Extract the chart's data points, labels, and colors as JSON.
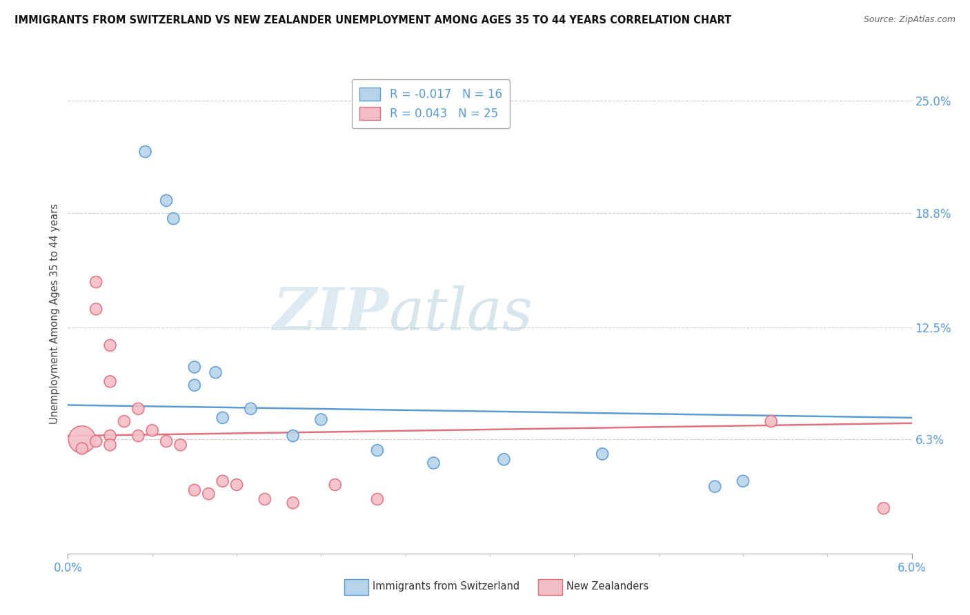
{
  "title": "IMMIGRANTS FROM SWITZERLAND VS NEW ZEALANDER UNEMPLOYMENT AMONG AGES 35 TO 44 YEARS CORRELATION CHART",
  "source": "Source: ZipAtlas.com",
  "ylabel": "Unemployment Among Ages 35 to 44 years",
  "xlim": [
    0.0,
    0.06
  ],
  "ylim": [
    0.0,
    0.265
  ],
  "yticks": [
    0.063,
    0.125,
    0.188,
    0.25
  ],
  "ytick_labels": [
    "6.3%",
    "12.5%",
    "18.8%",
    "25.0%"
  ],
  "xticks": [
    0.0,
    0.06
  ],
  "xtick_labels": [
    "0.0%",
    "6.0%"
  ],
  "blue_r": "-0.017",
  "blue_n": "16",
  "pink_r": "0.043",
  "pink_n": "25",
  "blue_color": "#b8d4ea",
  "blue_edge_color": "#5b9bd5",
  "pink_color": "#f4bec8",
  "pink_edge_color": "#e07080",
  "watermark_zip": "ZIP",
  "watermark_atlas": "atlas",
  "blue_scatter_x": [
    0.0055,
    0.007,
    0.0075,
    0.009,
    0.009,
    0.0105,
    0.011,
    0.013,
    0.016,
    0.018,
    0.022,
    0.026,
    0.031,
    0.038,
    0.046,
    0.048
  ],
  "blue_scatter_y": [
    0.222,
    0.195,
    0.185,
    0.103,
    0.093,
    0.1,
    0.075,
    0.08,
    0.065,
    0.074,
    0.057,
    0.05,
    0.052,
    0.055,
    0.037,
    0.04
  ],
  "blue_scatter_s": [
    150,
    150,
    150,
    150,
    150,
    150,
    150,
    150,
    150,
    150,
    150,
    150,
    150,
    150,
    150,
    150
  ],
  "pink_scatter_x": [
    0.001,
    0.001,
    0.002,
    0.002,
    0.002,
    0.003,
    0.003,
    0.003,
    0.003,
    0.004,
    0.005,
    0.005,
    0.006,
    0.007,
    0.008,
    0.009,
    0.01,
    0.011,
    0.012,
    0.014,
    0.016,
    0.019,
    0.022,
    0.05,
    0.058
  ],
  "pink_scatter_y": [
    0.063,
    0.058,
    0.15,
    0.135,
    0.062,
    0.115,
    0.095,
    0.065,
    0.06,
    0.073,
    0.08,
    0.065,
    0.068,
    0.062,
    0.06,
    0.035,
    0.033,
    0.04,
    0.038,
    0.03,
    0.028,
    0.038,
    0.03,
    0.073,
    0.025
  ],
  "pink_scatter_s": [
    800,
    150,
    150,
    150,
    150,
    150,
    150,
    150,
    150,
    150,
    150,
    150,
    150,
    150,
    150,
    150,
    150,
    150,
    150,
    150,
    150,
    150,
    150,
    150,
    150
  ],
  "blue_line_y0": 0.082,
  "blue_line_y1": 0.075,
  "pink_line_y0": 0.065,
  "pink_line_y1": 0.072
}
